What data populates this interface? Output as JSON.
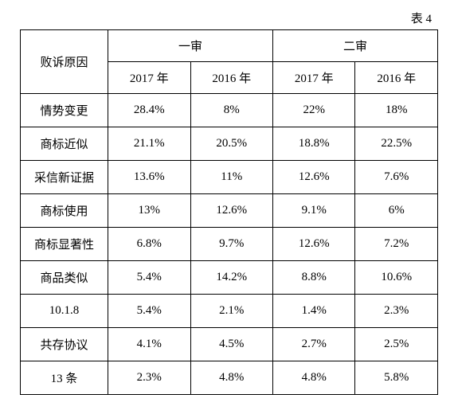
{
  "caption": "表 4",
  "header": {
    "reason_label": "败诉原因",
    "group1_label": "一审",
    "group2_label": "二审",
    "sub_labels": [
      "2017 年",
      "2016 年",
      "2017 年",
      "2016 年"
    ]
  },
  "rows": [
    {
      "label": "情势变更",
      "cells": [
        "28.4%",
        "8%",
        "22%",
        "18%"
      ]
    },
    {
      "label": "商标近似",
      "cells": [
        "21.1%",
        "20.5%",
        "18.8%",
        "22.5%"
      ]
    },
    {
      "label": "采信新证据",
      "cells": [
        "13.6%",
        "11%",
        "12.6%",
        "7.6%"
      ]
    },
    {
      "label": "商标使用",
      "cells": [
        "13%",
        "12.6%",
        "9.1%",
        "6%"
      ]
    },
    {
      "label": "商标显著性",
      "cells": [
        "6.8%",
        "9.7%",
        "12.6%",
        "7.2%"
      ]
    },
    {
      "label": "商品类似",
      "cells": [
        "5.4%",
        "14.2%",
        "8.8%",
        "10.6%"
      ]
    },
    {
      "label": "10.1.8",
      "cells": [
        "5.4%",
        "2.1%",
        "1.4%",
        "2.3%"
      ]
    },
    {
      "label": "共存协议",
      "cells": [
        "4.1%",
        "4.5%",
        "2.7%",
        "2.5%"
      ]
    },
    {
      "label": "13 条",
      "cells": [
        "2.3%",
        "4.8%",
        "4.8%",
        "5.8%"
      ]
    }
  ],
  "style": {
    "border_color": "#000000",
    "background_color": "#ffffff",
    "font_size_pt": 15
  }
}
